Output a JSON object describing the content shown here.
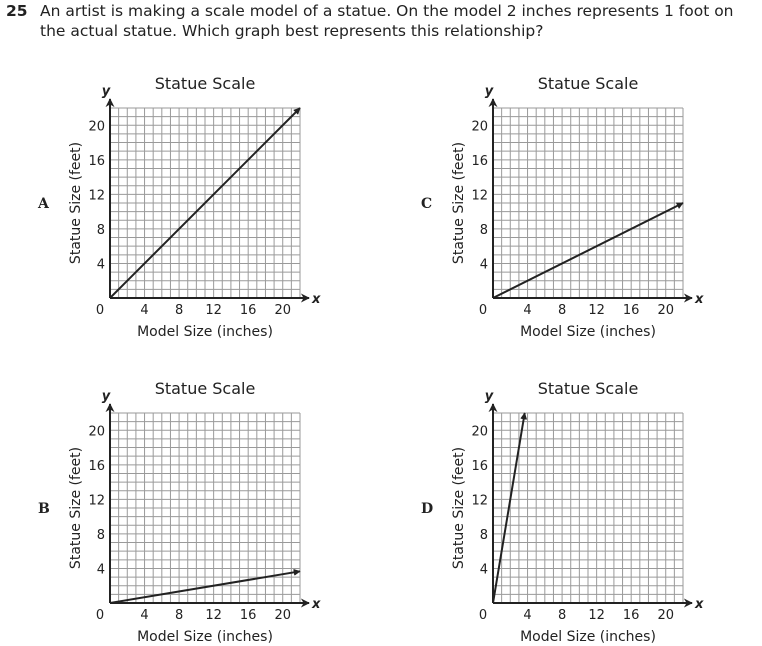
{
  "question": {
    "number": "25",
    "text": "An artist is making a scale model of a statue. On the model 2 inches represents 1 foot on the actual statue. Which graph best represents this relationship?"
  },
  "chart_data": [
    {
      "type": "line",
      "choice": "A",
      "title": "Statue Scale",
      "xlabel": "Model Size (inches)",
      "ylabel": "Statue Size (feet)",
      "xaxis_var": "x",
      "yaxis_var": "y",
      "xlim": [
        0,
        22
      ],
      "ylim": [
        0,
        22
      ],
      "xticks": [
        0,
        4,
        8,
        12,
        16,
        20
      ],
      "yticks": [
        4,
        8,
        12,
        16,
        20
      ],
      "grid": true,
      "series": [
        {
          "x": [
            0,
            22
          ],
          "y": [
            0,
            22
          ]
        }
      ]
    },
    {
      "type": "line",
      "choice": "C",
      "title": "Statue Scale",
      "xlabel": "Model Size (inches)",
      "ylabel": "Statue Size (feet)",
      "xaxis_var": "x",
      "yaxis_var": "y",
      "xlim": [
        0,
        22
      ],
      "ylim": [
        0,
        22
      ],
      "xticks": [
        0,
        4,
        8,
        12,
        16,
        20
      ],
      "yticks": [
        4,
        8,
        12,
        16,
        20
      ],
      "grid": true,
      "series": [
        {
          "x": [
            0,
            22
          ],
          "y": [
            0,
            11
          ]
        }
      ]
    },
    {
      "type": "line",
      "choice": "B",
      "title": "Statue Scale",
      "xlabel": "Model Size (inches)",
      "ylabel": "Statue Size (feet)",
      "xaxis_var": "x",
      "yaxis_var": "y",
      "xlim": [
        0,
        22
      ],
      "ylim": [
        0,
        22
      ],
      "xticks": [
        0,
        4,
        8,
        12,
        16,
        20
      ],
      "yticks": [
        4,
        8,
        12,
        16,
        20
      ],
      "grid": true,
      "series": [
        {
          "x": [
            0,
            22
          ],
          "y": [
            0,
            3.67
          ]
        }
      ]
    },
    {
      "type": "line",
      "choice": "D",
      "title": "Statue Scale",
      "xlabel": "Model Size (inches)",
      "ylabel": "Statue Size (feet)",
      "xaxis_var": "x",
      "yaxis_var": "y",
      "xlim": [
        0,
        22
      ],
      "ylim": [
        0,
        22
      ],
      "xticks": [
        0,
        4,
        8,
        12,
        16,
        20
      ],
      "yticks": [
        4,
        8,
        12,
        16,
        20
      ],
      "grid": true,
      "series": [
        {
          "x": [
            0,
            3.67
          ],
          "y": [
            0,
            22
          ]
        }
      ]
    }
  ]
}
